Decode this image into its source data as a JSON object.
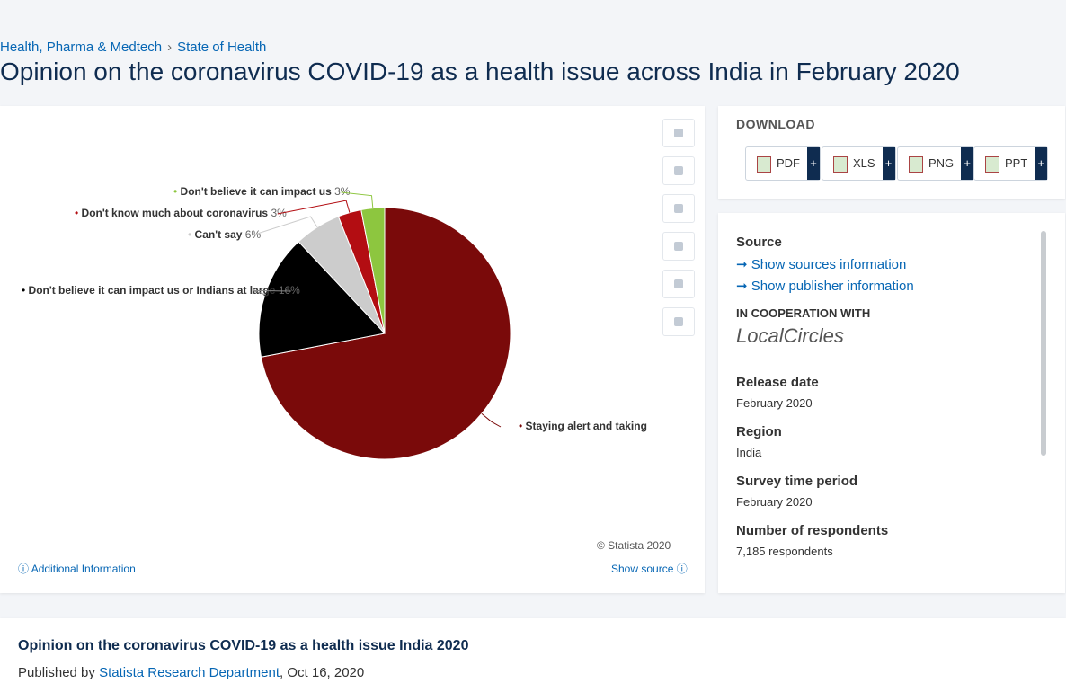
{
  "breadcrumb": [
    "Health, Pharma & Medtech",
    "State of Health"
  ],
  "title": "Opinion on the coronavirus COVID-19 as a health issue across India in February 2020",
  "chart_data": {
    "type": "pie",
    "categories": [
      "Staying alert and taking",
      "Don't believe it can impact us or Indians at large",
      "Can't say",
      "Don't know much about coronavirus",
      "Don't believe it can impact us"
    ],
    "values": [
      72,
      16,
      6,
      3,
      3
    ],
    "value_labels": [
      null,
      "16%",
      "6%",
      "3%",
      "3%"
    ],
    "colors": [
      "#7a0a0a",
      "#000000",
      "#cccccc",
      "#b30d12",
      "#8dc63f"
    ]
  },
  "copyright": "© Statista 2020",
  "additional_information": "Additional Information",
  "show_source": "Show source",
  "download": {
    "heading": "DOWNLOAD",
    "buttons": [
      "PDF",
      "XLS",
      "PNG",
      "PPT"
    ],
    "plus": "+"
  },
  "details": {
    "source_heading": "Source",
    "show_sources": "Show sources information",
    "show_publisher": "Show publisher information",
    "cooperation": "IN COOPERATION WITH",
    "partner": "LocalCircles",
    "items": [
      {
        "label": "Release date",
        "value": "February 2020"
      },
      {
        "label": "Region",
        "value": "India"
      },
      {
        "label": "Survey time period",
        "value": "February 2020"
      },
      {
        "label": "Number of respondents",
        "value": "7,185 respondents"
      }
    ]
  },
  "footer": {
    "title": "Opinion on the coronavirus COVID-19 as a health issue India 2020",
    "published_by": "Published by",
    "publisher": "Statista Research Department",
    "date": ", Oct 16, 2020"
  }
}
